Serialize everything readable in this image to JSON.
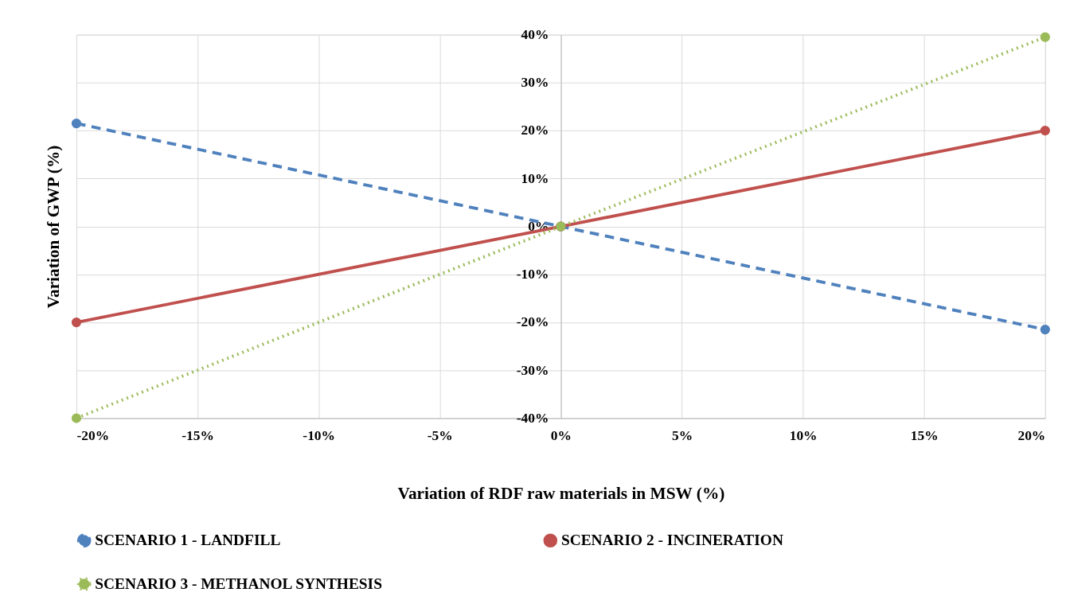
{
  "chart_data": {
    "type": "line",
    "xlabel": "Variation of RDF raw materials in MSW (%)",
    "ylabel": "Variation of GWP (%)",
    "x": [
      -20,
      0,
      20
    ],
    "series": [
      {
        "name": "SCENARIO 1 - LANDFILL",
        "color": "#4f81bd",
        "values": [
          21.5,
          0,
          -21.5
        ],
        "line_style": "dashed"
      },
      {
        "name": "SCENARIO 2 - INCINERATION",
        "color": "#c0504d",
        "values": [
          -20,
          0,
          20
        ],
        "line_style": "solid"
      },
      {
        "name": "SCENARIO 3 - METHANOL SYNTHESIS",
        "color": "#9bbb59",
        "values": [
          -40,
          0,
          39.5
        ],
        "line_style": "dotted"
      }
    ],
    "xlim": [
      -20,
      20
    ],
    "xticks": [
      {
        "value": -20,
        "label": "-20%"
      },
      {
        "value": -15,
        "label": "-15%"
      },
      {
        "value": -10,
        "label": "-10%"
      },
      {
        "value": -5,
        "label": "-5%"
      },
      {
        "value": 0,
        "label": "0%"
      },
      {
        "value": 5,
        "label": "5%"
      },
      {
        "value": 10,
        "label": "10%"
      },
      {
        "value": 15,
        "label": "15%"
      },
      {
        "value": 20,
        "label": "20%"
      }
    ],
    "ylim": [
      -40,
      40
    ],
    "yticks": [
      {
        "value": -40,
        "label": "-40%"
      },
      {
        "value": -30,
        "label": "-30%"
      },
      {
        "value": -20,
        "label": "-20%"
      },
      {
        "value": -10,
        "label": "-10%"
      },
      {
        "value": 0,
        "label": "0%"
      },
      {
        "value": 10,
        "label": "10%"
      },
      {
        "value": 20,
        "label": "20%"
      },
      {
        "value": 30,
        "label": "30%"
      },
      {
        "value": 40,
        "label": "40%"
      }
    ],
    "grid": true,
    "legend": "bottom",
    "marker": "circle"
  }
}
